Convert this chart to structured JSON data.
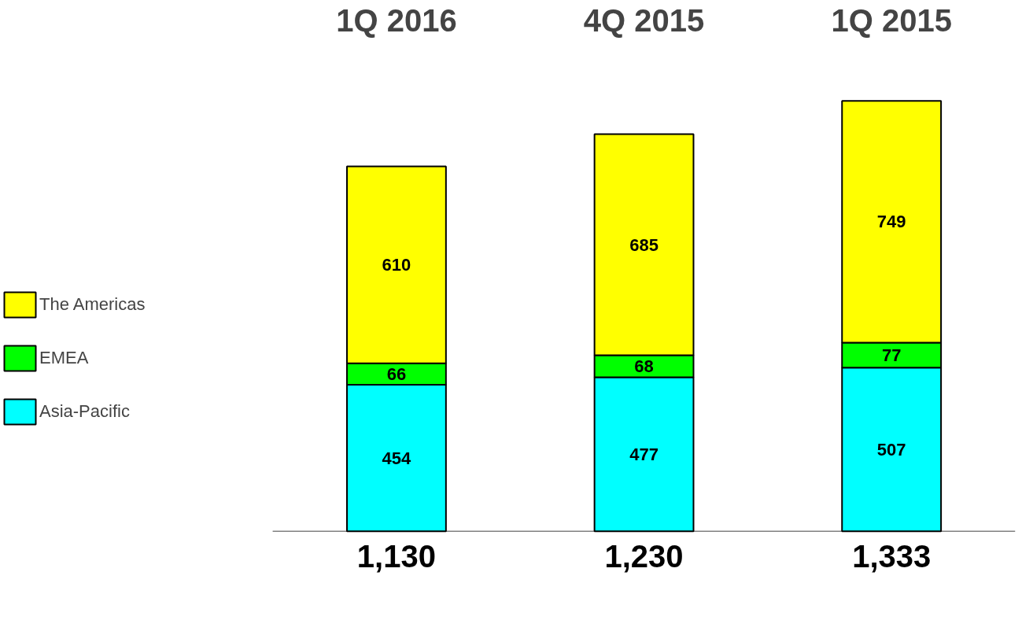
{
  "chart_data": {
    "type": "bar",
    "categories": [
      "1Q 2016",
      "4Q 2015",
      "1Q 2015"
    ],
    "stacked": true,
    "data_labels": true,
    "legend": "left",
    "series": [
      {
        "name": "Asia-Pacific",
        "color": "#00ffff",
        "values": [
          454,
          477,
          507
        ]
      },
      {
        "name": "EMEA",
        "color": "#00ff00",
        "values": [
          66,
          68,
          77
        ]
      },
      {
        "name": "The Americas",
        "color": "#ffff00",
        "values": [
          610,
          685,
          749
        ]
      }
    ],
    "totals": [
      "1,130",
      "1,230",
      "1,333"
    ]
  }
}
